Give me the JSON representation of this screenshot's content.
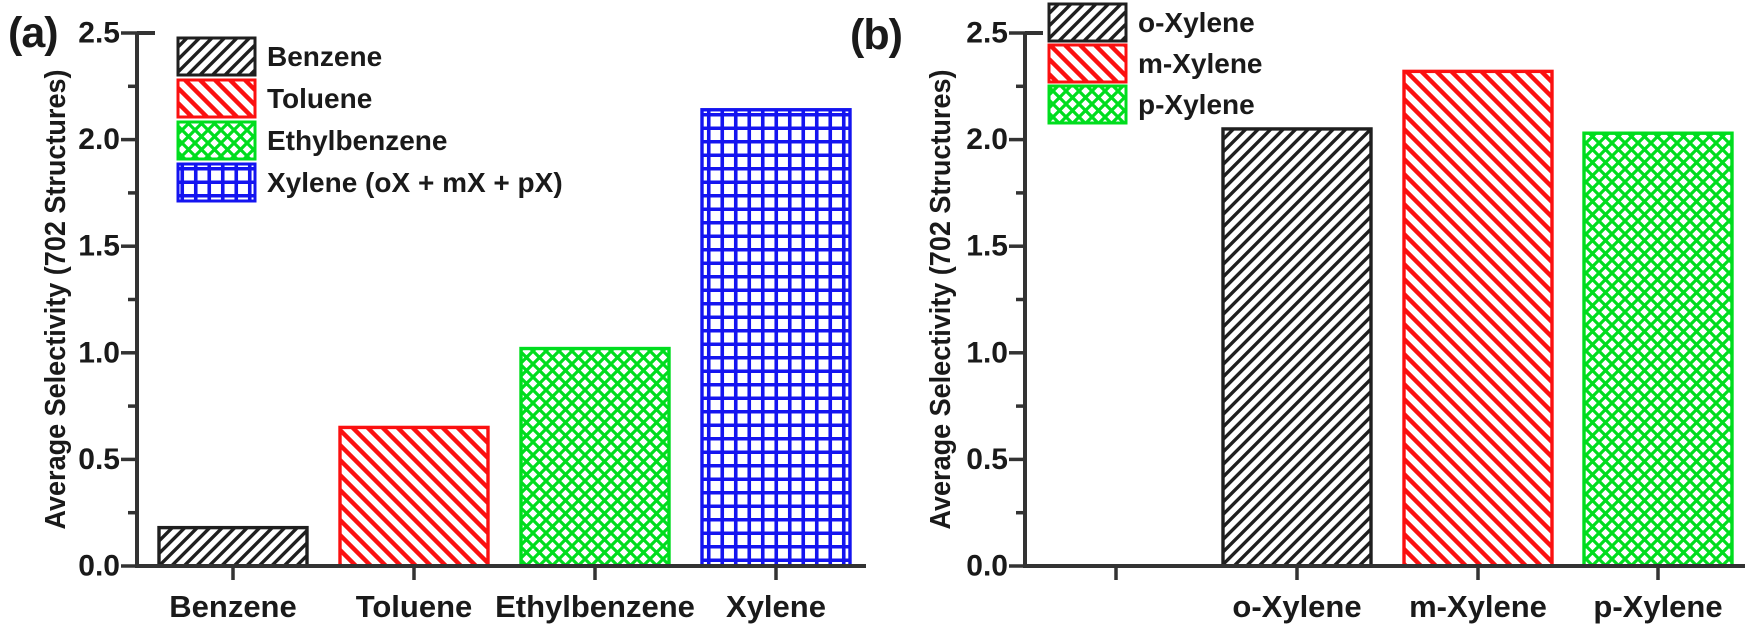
{
  "colors": {
    "background": "#ffffff",
    "axis": "#333333",
    "text": "#1a1a1a",
    "black_series": "#1f1f1f",
    "red_series": "#fb1010",
    "green_series": "#00dd1e",
    "blue_series": "#1414f0"
  },
  "chart_data": [
    {
      "type": "bar",
      "panel_tag": "(a)",
      "title": "",
      "xlabel": "",
      "ylabel": "Average Selectivity (702 Structures)",
      "ylim": [
        0,
        2.5
      ],
      "ytick_labels": [
        "0.0",
        "0.5",
        "1.0",
        "1.5",
        "2.0",
        "2.5"
      ],
      "ytick_step": 0.5,
      "minor_tick_step": 0.25,
      "grid": false,
      "legend_position": "top-left-inside",
      "empty_leading_slots": 0,
      "categories": [
        "Benzene",
        "Toluene",
        "Ethylbenzene",
        "Xylene"
      ],
      "values": [
        0.18,
        0.65,
        1.02,
        2.14
      ],
      "styles": [
        {
          "legend_label": "Benzene",
          "color": "#1f1f1f",
          "hatch": "diagonal-up"
        },
        {
          "legend_label": "Toluene",
          "color": "#fb1010",
          "hatch": "diagonal-down"
        },
        {
          "legend_label": "Ethylbenzene",
          "color": "#00dd1e",
          "hatch": "crosshatch"
        },
        {
          "legend_label": "Xylene (oX + mX + pX)",
          "color": "#1414f0",
          "hatch": "grid"
        }
      ]
    },
    {
      "type": "bar",
      "panel_tag": "(b)",
      "title": "",
      "xlabel": "",
      "ylabel": "Average Selectivity (702 Structures)",
      "ylim": [
        0,
        2.5
      ],
      "ytick_labels": [
        "0.0",
        "0.5",
        "1.0",
        "1.5",
        "2.0",
        "2.5"
      ],
      "ytick_step": 0.5,
      "minor_tick_step": 0.25,
      "grid": false,
      "legend_position": "top-left-inside",
      "empty_leading_slots": 1,
      "categories": [
        "o-Xylene",
        "m-Xylene",
        "p-Xylene"
      ],
      "values": [
        2.05,
        2.32,
        2.03
      ],
      "styles": [
        {
          "legend_label": "o-Xylene",
          "color": "#1f1f1f",
          "hatch": "diagonal-up"
        },
        {
          "legend_label": "m-Xylene",
          "color": "#fb1010",
          "hatch": "diagonal-down"
        },
        {
          "legend_label": "p-Xylene",
          "color": "#00dd1e",
          "hatch": "crosshatch"
        }
      ]
    }
  ]
}
